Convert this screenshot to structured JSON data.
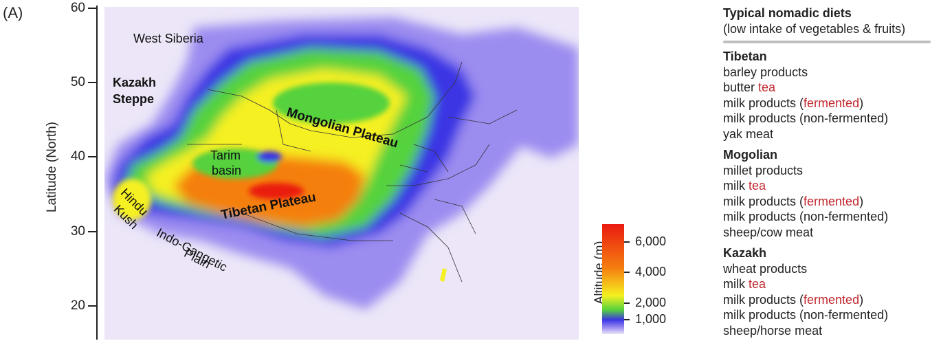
{
  "panel_label": "(A)",
  "y_axis": {
    "label": "Latitude (North)",
    "ticks": [
      "60",
      "50",
      "40",
      "30",
      "20"
    ]
  },
  "map": {
    "regions": {
      "west_siberia": "West Siberia",
      "kazakh_steppe_1": "Kazakh",
      "kazakh_steppe_2": "Steppe",
      "mongolian_plateau": "Mongolian Plateau",
      "tarim_1": "Tarim",
      "tarim_2": "basin",
      "tibetan_plateau": "Tibetan Plateau",
      "hindu_1": "Hindu",
      "hindu_2": "Kush",
      "indo_1": "Indo-Gangetic",
      "indo_2": "Plain"
    },
    "colors": {
      "lowland": "#ece6f8",
      "low": "#9b8cf0",
      "blue": "#3b34e4",
      "green": "#55d23c",
      "yellow": "#f5f020",
      "orange": "#f57f10",
      "red": "#ea1a10",
      "border": "#333333"
    }
  },
  "colorbar": {
    "title": "Altitude (m)",
    "ticks": [
      "6,000",
      "4,000",
      "2,000",
      "1,000"
    ],
    "values": [
      6000,
      4000,
      2000,
      1000
    ],
    "range": [
      0,
      7000
    ]
  },
  "legend": {
    "title": "Typical nomadic diets",
    "subtitle": "(low intake of vegetables & fruits)",
    "groups": [
      {
        "name": "Tibetan",
        "items": [
          {
            "pre": "barley products",
            "red": "",
            "post": ""
          },
          {
            "pre": "butter ",
            "red": "tea",
            "post": ""
          },
          {
            "pre": "milk products (",
            "red": "fermented",
            "post": ")"
          },
          {
            "pre": "milk products (non-fermented)",
            "red": "",
            "post": ""
          },
          {
            "pre": "yak meat",
            "red": "",
            "post": ""
          }
        ]
      },
      {
        "name": "Mogolian",
        "items": [
          {
            "pre": "millet products",
            "red": "",
            "post": ""
          },
          {
            "pre": "milk ",
            "red": "tea",
            "post": ""
          },
          {
            "pre": "milk products (",
            "red": "fermented",
            "post": ")"
          },
          {
            "pre": "milk products (non-fermented)",
            "red": "",
            "post": ""
          },
          {
            "pre": "sheep/cow meat",
            "red": "",
            "post": ""
          }
        ]
      },
      {
        "name": "Kazakh",
        "items": [
          {
            "pre": "wheat products",
            "red": "",
            "post": ""
          },
          {
            "pre": "milk ",
            "red": "tea",
            "post": ""
          },
          {
            "pre": "milk products (",
            "red": "fermented",
            "post": ")"
          },
          {
            "pre": "milk products (non-fermented)",
            "red": "",
            "post": ""
          },
          {
            "pre": "sheep/horse meat",
            "red": "",
            "post": ""
          }
        ]
      }
    ]
  }
}
